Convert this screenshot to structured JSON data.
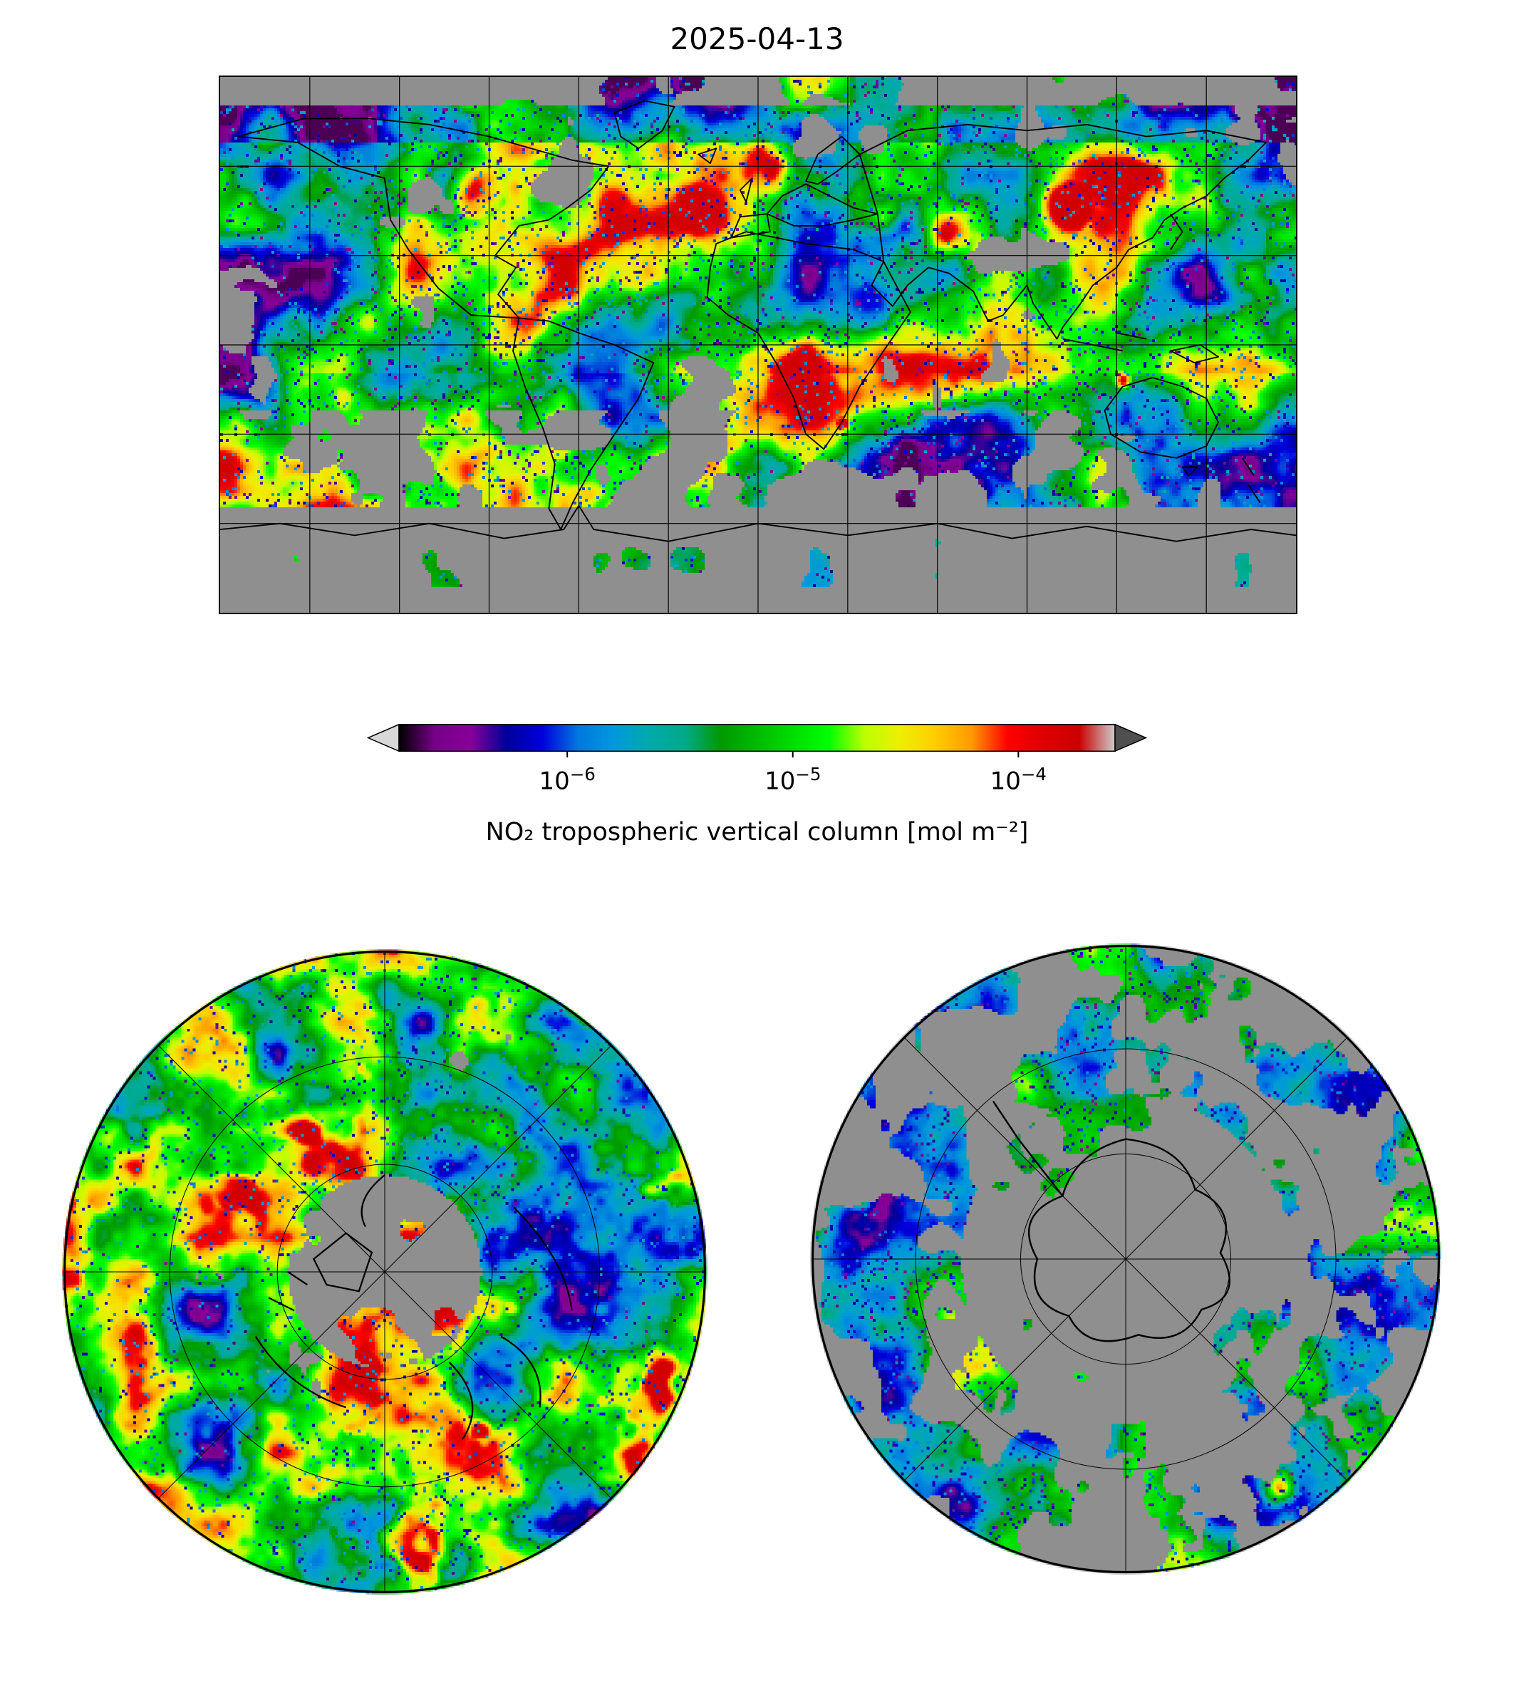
{
  "figure": {
    "title": "2025-04-13"
  },
  "colorbar": {
    "label": "NO₂ tropospheric vertical column [mol m⁻²]",
    "ticks": [
      {
        "base": "10",
        "exp": "−6",
        "pos": 0.235
      },
      {
        "base": "10",
        "exp": "−5",
        "pos": 0.55
      },
      {
        "base": "10",
        "exp": "−4",
        "pos": 0.865
      }
    ],
    "stops": [
      [
        0.0,
        "#000000"
      ],
      [
        0.05,
        "#770088"
      ],
      [
        0.1,
        "#880099"
      ],
      [
        0.15,
        "#000099"
      ],
      [
        0.2,
        "#0000dd"
      ],
      [
        0.25,
        "#0077dd"
      ],
      [
        0.3,
        "#0099dd"
      ],
      [
        0.35,
        "#00aaaa"
      ],
      [
        0.4,
        "#00aa88"
      ],
      [
        0.45,
        "#009900"
      ],
      [
        0.5,
        "#00bb00"
      ],
      [
        0.55,
        "#00dd00"
      ],
      [
        0.6,
        "#00ff00"
      ],
      [
        0.65,
        "#bbff00"
      ],
      [
        0.7,
        "#eeee00"
      ],
      [
        0.75,
        "#ffcc00"
      ],
      [
        0.8,
        "#ff9900"
      ],
      [
        0.85,
        "#ff0000"
      ],
      [
        0.9,
        "#dd0000"
      ],
      [
        0.95,
        "#cc0000"
      ],
      [
        1.0,
        "#cccccc"
      ]
    ],
    "under_color": "#d8d8d8",
    "over_color": "#4f4f4f"
  },
  "map": {
    "no_data_color": "#8f8f8f",
    "projection": "equirectangular",
    "graticule_deg": 30
  },
  "polar_north": {
    "name": "north-polar-stereographic-view"
  },
  "polar_south": {
    "name": "south-polar-stereographic-view"
  }
}
